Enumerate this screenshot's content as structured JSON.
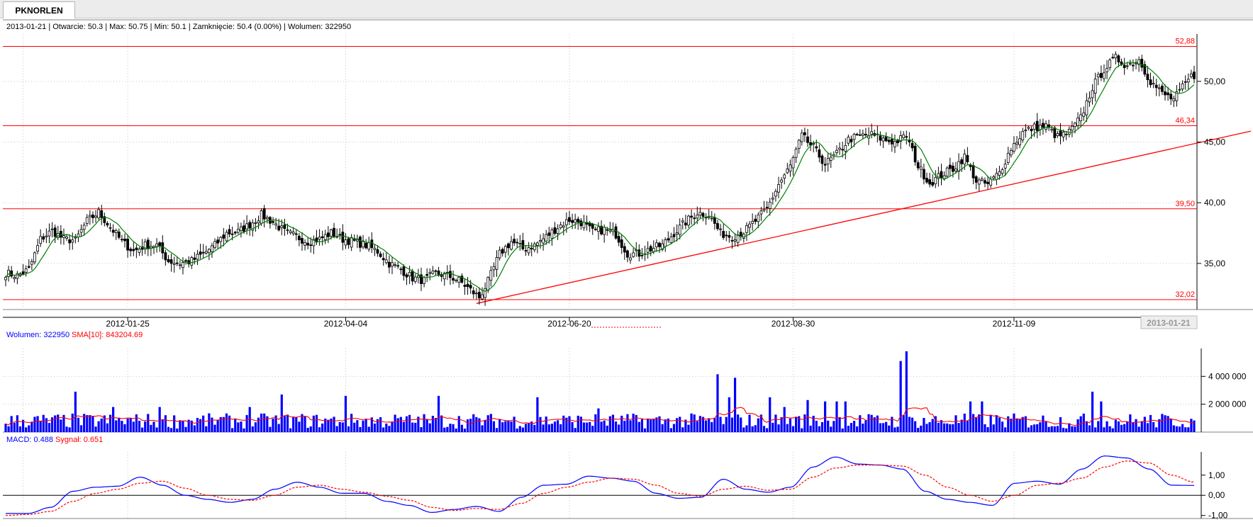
{
  "tab": {
    "label": "PKNORLEN"
  },
  "colors": {
    "candle": "#000000",
    "sma_price": "#008000",
    "support_lines": "#ff0000",
    "volume_bars": "#0000ff",
    "volume_sma": "#ff0000",
    "macd": "#0000ff",
    "signal": "#ff0000",
    "grid": "#c8c8c8"
  },
  "chart_data": [
    {
      "type": "candlestick",
      "info_line": "2013-01-21 | Otwarcie: 50.3 | Max: 50.75 | Min: 50.1 | Zamknięcie: 50.4 (0.00%)  | Wolumen: 322950",
      "ylim": [
        31.2,
        53.9
      ],
      "y_ticks": [
        "35,00",
        "40,00",
        "45,00",
        "50,00"
      ],
      "x_ticks": [
        "2012-01-25",
        "2012-04-04",
        "2012-06-20",
        "2012-08-30",
        "2012-11-09"
      ],
      "current_date_label": "2013-01-21",
      "levels": [
        {
          "value": 52.88,
          "label": "52,88"
        },
        {
          "value": 46.34,
          "label": "46,34"
        },
        {
          "value": 39.5,
          "label": "39,50"
        },
        {
          "value": 32.02,
          "label": "32,02"
        }
      ],
      "trendline": {
        "from": [
          162,
          31.7
        ],
        "to": [
          410,
          45.9
        ]
      },
      "anchors": [
        [
          0,
          34.2
        ],
        [
          4,
          34.0
        ],
        [
          8,
          34.5
        ],
        [
          12,
          37.0
        ],
        [
          16,
          37.7
        ],
        [
          20,
          37.0
        ],
        [
          24,
          36.9
        ],
        [
          28,
          38.5
        ],
        [
          32,
          39.2
        ],
        [
          36,
          38.0
        ],
        [
          40,
          36.8
        ],
        [
          44,
          36.0
        ],
        [
          48,
          36.5
        ],
        [
          52,
          36.5
        ],
        [
          56,
          35.2
        ],
        [
          60,
          35.0
        ],
        [
          64,
          35.2
        ],
        [
          68,
          35.8
        ],
        [
          72,
          36.5
        ],
        [
          76,
          37.5
        ],
        [
          80,
          37.6
        ],
        [
          84,
          38.2
        ],
        [
          88,
          39.0
        ],
        [
          92,
          38.4
        ],
        [
          96,
          37.6
        ],
        [
          100,
          37.2
        ],
        [
          104,
          36.8
        ],
        [
          108,
          37.0
        ],
        [
          112,
          37.5
        ],
        [
          116,
          37.0
        ],
        [
          120,
          36.8
        ],
        [
          124,
          36.5
        ],
        [
          128,
          36.0
        ],
        [
          132,
          35.0
        ],
        [
          136,
          34.5
        ],
        [
          140,
          33.8
        ],
        [
          144,
          33.6
        ],
        [
          148,
          34.2
        ],
        [
          152,
          34.0
        ],
        [
          156,
          33.6
        ],
        [
          160,
          32.8
        ],
        [
          163,
          32.2
        ],
        [
          166,
          33.5
        ],
        [
          170,
          35.8
        ],
        [
          174,
          36.8
        ],
        [
          178,
          36.2
        ],
        [
          182,
          36.5
        ],
        [
          186,
          37.2
        ],
        [
          190,
          38.0
        ],
        [
          194,
          38.6
        ],
        [
          198,
          38.4
        ],
        [
          202,
          37.6
        ],
        [
          206,
          37.8
        ],
        [
          210,
          37.4
        ],
        [
          214,
          35.8
        ],
        [
          218,
          35.8
        ],
        [
          222,
          36.2
        ],
        [
          226,
          36.5
        ],
        [
          230,
          37.5
        ],
        [
          234,
          38.4
        ],
        [
          238,
          39.2
        ],
        [
          242,
          39.0
        ],
        [
          246,
          37.5
        ],
        [
          250,
          37.2
        ],
        [
          254,
          37.6
        ],
        [
          258,
          38.5
        ],
        [
          262,
          39.5
        ],
        [
          266,
          41.5
        ],
        [
          270,
          43.0
        ],
        [
          274,
          45.5
        ],
        [
          278,
          44.5
        ],
        [
          282,
          43.2
        ],
        [
          286,
          44.0
        ],
        [
          290,
          45.2
        ],
        [
          294,
          45.5
        ],
        [
          298,
          45.6
        ],
        [
          302,
          45.2
        ],
        [
          306,
          45.0
        ],
        [
          310,
          45.5
        ],
        [
          314,
          43.0
        ],
        [
          318,
          41.6
        ],
        [
          322,
          42.3
        ],
        [
          326,
          42.8
        ],
        [
          330,
          43.8
        ],
        [
          334,
          41.8
        ],
        [
          338,
          41.5
        ],
        [
          342,
          42.5
        ],
        [
          346,
          44.5
        ],
        [
          350,
          45.8
        ],
        [
          354,
          46.2
        ],
        [
          358,
          46.3
        ],
        [
          362,
          45.4
        ],
        [
          366,
          45.8
        ],
        [
          370,
          47.0
        ],
        [
          374,
          49.5
        ],
        [
          378,
          51.0
        ],
        [
          382,
          51.9
        ],
        [
          386,
          51.3
        ],
        [
          390,
          51.8
        ],
        [
          394,
          50.0
        ],
        [
          398,
          49.0
        ],
        [
          402,
          48.5
        ],
        [
          406,
          49.8
        ],
        [
          408,
          50.4
        ]
      ],
      "sma": {
        "name": "SMA",
        "color": "#008000"
      }
    },
    {
      "type": "bar",
      "legend": [
        {
          "text": "Wolumen: 322950",
          "color": "#0000ff"
        },
        {
          "text": "SMA[10]: 843204.69",
          "color": "#ff0000"
        }
      ],
      "ylim": [
        0,
        6000000
      ],
      "y_ticks": [
        {
          "value": 2000000,
          "label": "2 000 000"
        },
        {
          "value": 4000000,
          "label": "4 000 000"
        }
      ],
      "spikes": [
        [
          24,
          2900000
        ],
        [
          37,
          1800000
        ],
        [
          53,
          1800000
        ],
        [
          84,
          1800000
        ],
        [
          95,
          2700000
        ],
        [
          117,
          2600000
        ],
        [
          149,
          2600000
        ],
        [
          183,
          2500000
        ],
        [
          204,
          1700000
        ],
        [
          245,
          4150000
        ],
        [
          249,
          2500000
        ],
        [
          251,
          3900000
        ],
        [
          263,
          2500000
        ],
        [
          268,
          1800000
        ],
        [
          276,
          2300000
        ],
        [
          282,
          2200000
        ],
        [
          286,
          2200000
        ],
        [
          289,
          2200000
        ],
        [
          308,
          5100000
        ],
        [
          310,
          5800000
        ],
        [
          332,
          2200000
        ],
        [
          336,
          2200000
        ],
        [
          374,
          2900000
        ],
        [
          377,
          2200000
        ]
      ]
    },
    {
      "type": "line",
      "legend": [
        {
          "text": "MACD: 0.488",
          "color": "#0000ff"
        },
        {
          "text": "Sygnał: 0.651",
          "color": "#ff0000"
        }
      ],
      "ylim": [
        -1.15,
        2.15
      ],
      "y_ticks": [
        "-1,00",
        "0,00",
        "1,00"
      ],
      "series": [
        {
          "name": "MACD",
          "color": "#0000ff",
          "values": [
            -0.9,
            -0.9,
            -0.6,
            0.2,
            0.4,
            0.45,
            0.9,
            0.5,
            0.0,
            -0.2,
            -0.35,
            -0.2,
            0.3,
            0.65,
            0.4,
            0.1,
            0.1,
            -0.3,
            -0.5,
            -0.85,
            -0.7,
            -0.55,
            -0.8,
            -0.1,
            0.5,
            0.55,
            0.95,
            0.85,
            0.7,
            0.1,
            -0.15,
            -0.1,
            0.8,
            0.3,
            0.15,
            0.4,
            1.4,
            1.9,
            1.55,
            1.5,
            1.3,
            0.2,
            -0.2,
            -0.35,
            -0.5,
            0.6,
            0.7,
            0.55,
            1.3,
            1.95,
            1.85,
            1.3,
            0.5,
            0.488
          ]
        },
        {
          "name": "Sygnał",
          "color": "#ff0000",
          "values": [
            -1.0,
            -0.95,
            -0.8,
            -0.3,
            0.1,
            0.3,
            0.6,
            0.7,
            0.35,
            0.0,
            -0.2,
            -0.25,
            0.0,
            0.4,
            0.5,
            0.3,
            0.15,
            -0.05,
            -0.25,
            -0.6,
            -0.75,
            -0.65,
            -0.7,
            -0.4,
            0.1,
            0.4,
            0.65,
            0.85,
            0.8,
            0.5,
            0.1,
            -0.05,
            0.3,
            0.45,
            0.25,
            0.3,
            0.9,
            1.35,
            1.5,
            1.5,
            1.45,
            1.0,
            0.4,
            0.0,
            -0.3,
            0.0,
            0.5,
            0.6,
            0.85,
            1.4,
            1.7,
            1.6,
            1.0,
            0.651
          ]
        }
      ]
    }
  ]
}
